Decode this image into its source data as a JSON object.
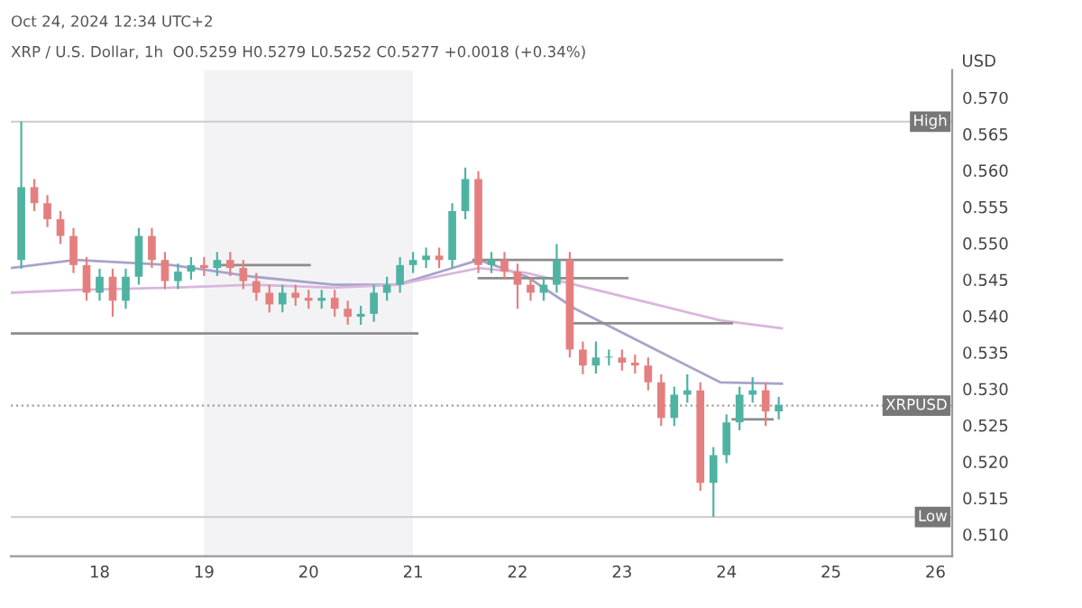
{
  "chart_data": {
    "type": "candlestick",
    "subtitle": "Oct 24, 2024 12:34 UTC+2",
    "title": "XRP / U.S. Dollar, 1h  O0.5259 H0.5279 L0.5252 C0.5277 +0.0018 (+0.34%)",
    "ylabel": "USD",
    "x": [
      17.25,
      17.375,
      17.5,
      17.625,
      17.75,
      17.875,
      18.0,
      18.125,
      18.25,
      18.375,
      18.5,
      18.625,
      18.75,
      18.875,
      19.0,
      19.125,
      19.25,
      19.375,
      19.5,
      19.625,
      19.75,
      19.875,
      20.0,
      20.125,
      20.25,
      20.375,
      20.5,
      20.625,
      20.75,
      20.875,
      21.0,
      21.125,
      21.25,
      21.375,
      21.5,
      21.625,
      21.75,
      21.875,
      22.0,
      22.125,
      22.25,
      22.375,
      22.5,
      22.625,
      22.75,
      22.875,
      23.0,
      23.125,
      23.25,
      23.375,
      23.5,
      23.625,
      23.75,
      23.875,
      24.0,
      24.125,
      24.25,
      24.375,
      24.5
    ],
    "ohlc": [
      [
        0.5477,
        0.5667,
        0.5465,
        0.5577
      ],
      [
        0.5577,
        0.5588,
        0.5544,
        0.5555
      ],
      [
        0.5555,
        0.5566,
        0.5522,
        0.5533
      ],
      [
        0.5533,
        0.5544,
        0.5499,
        0.551
      ],
      [
        0.551,
        0.5521,
        0.5459,
        0.547
      ],
      [
        0.547,
        0.5481,
        0.5421,
        0.5432
      ],
      [
        0.5432,
        0.5465,
        0.5421,
        0.5454
      ],
      [
        0.5454,
        0.5465,
        0.5399,
        0.5421
      ],
      [
        0.5421,
        0.5465,
        0.541,
        0.5454
      ],
      [
        0.5454,
        0.5521,
        0.5443,
        0.551
      ],
      [
        0.551,
        0.5521,
        0.5466,
        0.5477
      ],
      [
        0.5477,
        0.5488,
        0.5437,
        0.5448
      ],
      [
        0.5448,
        0.5472,
        0.5437,
        0.5461
      ],
      [
        0.5461,
        0.5481,
        0.545,
        0.547
      ],
      [
        0.547,
        0.5481,
        0.5455,
        0.5466
      ],
      [
        0.5466,
        0.5488,
        0.5455,
        0.5477
      ],
      [
        0.5477,
        0.5488,
        0.5455,
        0.5466
      ],
      [
        0.5466,
        0.5477,
        0.5437,
        0.5448
      ],
      [
        0.5448,
        0.5459,
        0.5421,
        0.5432
      ],
      [
        0.5432,
        0.5443,
        0.5405,
        0.5416
      ],
      [
        0.5416,
        0.5443,
        0.5405,
        0.5432
      ],
      [
        0.5432,
        0.5443,
        0.5414,
        0.5425
      ],
      [
        0.5425,
        0.5436,
        0.541,
        0.5421
      ],
      [
        0.5421,
        0.5436,
        0.541,
        0.5425
      ],
      [
        0.5425,
        0.5436,
        0.5399,
        0.541
      ],
      [
        0.541,
        0.5421,
        0.5388,
        0.5399
      ],
      [
        0.5399,
        0.5414,
        0.5388,
        0.5403
      ],
      [
        0.5403,
        0.5443,
        0.5392,
        0.5432
      ],
      [
        0.5432,
        0.5454,
        0.5421,
        0.5443
      ],
      [
        0.5443,
        0.5481,
        0.5432,
        0.547
      ],
      [
        0.547,
        0.5488,
        0.5459,
        0.5477
      ],
      [
        0.5477,
        0.5494,
        0.5466,
        0.5483
      ],
      [
        0.5483,
        0.5494,
        0.5466,
        0.5477
      ],
      [
        0.5477,
        0.5555,
        0.5466,
        0.5544
      ],
      [
        0.5544,
        0.5604,
        0.5533,
        0.5588
      ],
      [
        0.5588,
        0.5599,
        0.5459,
        0.547
      ],
      [
        0.547,
        0.5488,
        0.5459,
        0.5477
      ],
      [
        0.5477,
        0.5488,
        0.545,
        0.5461
      ],
      [
        0.5461,
        0.5472,
        0.541,
        0.5443
      ],
      [
        0.5443,
        0.5454,
        0.5421,
        0.5432
      ],
      [
        0.5432,
        0.5454,
        0.5421,
        0.5443
      ],
      [
        0.5443,
        0.5499,
        0.5432,
        0.5477
      ],
      [
        0.5477,
        0.5488,
        0.5343,
        0.5354
      ],
      [
        0.5354,
        0.5365,
        0.532,
        0.5332
      ],
      [
        0.5332,
        0.5365,
        0.5321,
        0.5343
      ],
      [
        0.5343,
        0.5354,
        0.5332,
        0.5343
      ],
      [
        0.5343,
        0.5354,
        0.5325,
        0.5336
      ],
      [
        0.5336,
        0.5347,
        0.5321,
        0.5332
      ],
      [
        0.5332,
        0.5343,
        0.5298,
        0.5309
      ],
      [
        0.5309,
        0.532,
        0.5249,
        0.526
      ],
      [
        0.526,
        0.5303,
        0.5249,
        0.5292
      ],
      [
        0.5292,
        0.532,
        0.5281,
        0.5298
      ],
      [
        0.5298,
        0.5309,
        0.516,
        0.5171
      ],
      [
        0.5171,
        0.522,
        0.5124,
        0.5209
      ],
      [
        0.5209,
        0.5265,
        0.5198,
        0.5254
      ],
      [
        0.5254,
        0.5303,
        0.5243,
        0.5292
      ],
      [
        0.5292,
        0.5316,
        0.5281,
        0.5298
      ],
      [
        0.5298,
        0.5309,
        0.5249,
        0.5269
      ],
      [
        0.5269,
        0.5289,
        0.5258,
        0.5278
      ]
    ],
    "colors": [
      "#4fb3a2",
      "#e57f7f",
      "#e57f7f",
      "#e57f7f",
      "#e57f7f",
      "#e57f7f",
      "#4fb3a2",
      "#e57f7f",
      "#4fb3a2",
      "#4fb3a2",
      "#e57f7f",
      "#e57f7f",
      "#4fb3a2",
      "#4fb3a2",
      "#e57f7f",
      "#4fb3a2",
      "#e57f7f",
      "#e57f7f",
      "#e57f7f",
      "#e57f7f",
      "#4fb3a2",
      "#e57f7f",
      "#e57f7f",
      "#4fb3a2",
      "#e57f7f",
      "#e57f7f",
      "#4fb3a2",
      "#4fb3a2",
      "#4fb3a2",
      "#4fb3a2",
      "#4fb3a2",
      "#4fb3a2",
      "#e57f7f",
      "#4fb3a2",
      "#4fb3a2",
      "#e57f7f",
      "#4fb3a2",
      "#e57f7f",
      "#e57f7f",
      "#e57f7f",
      "#4fb3a2",
      "#4fb3a2",
      "#e57f7f",
      "#e57f7f",
      "#4fb3a2",
      "#4fb3a2",
      "#e57f7f",
      "#e57f7f",
      "#e57f7f",
      "#e57f7f",
      "#4fb3a2",
      "#4fb3a2",
      "#e57f7f",
      "#4fb3a2",
      "#4fb3a2",
      "#4fb3a2",
      "#4fb3a2",
      "#e57f7f",
      "#4fb3a2"
    ],
    "series": [
      {
        "type": "line",
        "color": "#a9a3c9",
        "x": [
          17.15,
          17.77,
          18.69,
          19.47,
          20.24,
          20.85,
          21.63,
          22.09,
          22.55,
          23.32,
          23.94,
          24.53
        ],
        "values": [
          0.5466,
          0.5477,
          0.547,
          0.5454,
          0.5443,
          0.5443,
          0.5477,
          0.5454,
          0.541,
          0.5354,
          0.5309,
          0.5307
        ]
      },
      {
        "type": "line",
        "color": "#d9b6dd",
        "x": [
          17.15,
          17.77,
          18.69,
          19.47,
          20.24,
          20.85,
          21.63,
          22.09,
          22.55,
          23.32,
          23.94,
          24.53
        ],
        "values": [
          0.5432,
          0.5436,
          0.5439,
          0.5443,
          0.5439,
          0.5443,
          0.5466,
          0.5459,
          0.5443,
          0.5416,
          0.5394,
          0.5383
        ]
      },
      {
        "type": "line",
        "color": "#8c8c8c",
        "x": [
          19.16,
          20.01
        ],
        "values": [
          0.547,
          0.547
        ]
      },
      {
        "type": "line",
        "color": "#8c8c8c",
        "x": [
          21.58,
          24.53
        ],
        "values": [
          0.5477,
          0.5477
        ]
      },
      {
        "type": "line",
        "color": "#8c8c8c",
        "x": [
          21.63,
          23.05
        ],
        "values": [
          0.5452,
          0.5452
        ]
      },
      {
        "type": "line",
        "color": "#8c8c8c",
        "x": [
          17.15,
          21.04
        ],
        "values": [
          0.5376,
          0.5376
        ]
      },
      {
        "type": "line",
        "color": "#8c8c8c",
        "x": [
          22.48,
          24.05
        ],
        "values": [
          0.539,
          0.539
        ]
      },
      {
        "type": "line",
        "color": "#8c8c8c",
        "x": [
          24.06,
          24.44
        ],
        "values": [
          0.5258,
          0.5258
        ]
      }
    ],
    "ref_lines": [
      {
        "axis": "y",
        "value": 0.5667,
        "label": "High",
        "color": "#d0d0d0",
        "line_style": "solid"
      },
      {
        "axis": "y",
        "value": 0.5124,
        "label": "Low",
        "color": "#d0d0d0",
        "line_style": "solid"
      },
      {
        "axis": "y",
        "value": 0.5277,
        "label": "XRPUSD",
        "color": "#a0a0a0",
        "line_style": "dotted"
      }
    ],
    "bands": [
      {
        "axis": "x",
        "from": 19,
        "to": 21,
        "color": "#f3f3f5"
      }
    ],
    "xlim": [
      17.15,
      26.16
    ],
    "xticks": [
      18,
      19,
      20,
      21,
      22,
      23,
      24,
      25,
      26
    ],
    "ylim": [
      0.507,
      0.5738
    ],
    "yticks": [
      {
        "value": 0.51,
        "label": "0.510"
      },
      {
        "value": 0.515,
        "label": "0.515"
      },
      {
        "value": 0.52,
        "label": "0.520"
      },
      {
        "value": 0.525,
        "label": "0.525"
      },
      {
        "value": 0.53,
        "label": "0.530"
      },
      {
        "value": 0.535,
        "label": "0.535"
      },
      {
        "value": 0.54,
        "label": "0.540"
      },
      {
        "value": 0.545,
        "label": "0.545"
      },
      {
        "value": 0.55,
        "label": "0.550"
      },
      {
        "value": 0.555,
        "label": "0.555"
      },
      {
        "value": 0.56,
        "label": "0.560"
      },
      {
        "value": 0.565,
        "label": "0.565"
      },
      {
        "value": 0.57,
        "label": "0.570"
      }
    ]
  }
}
